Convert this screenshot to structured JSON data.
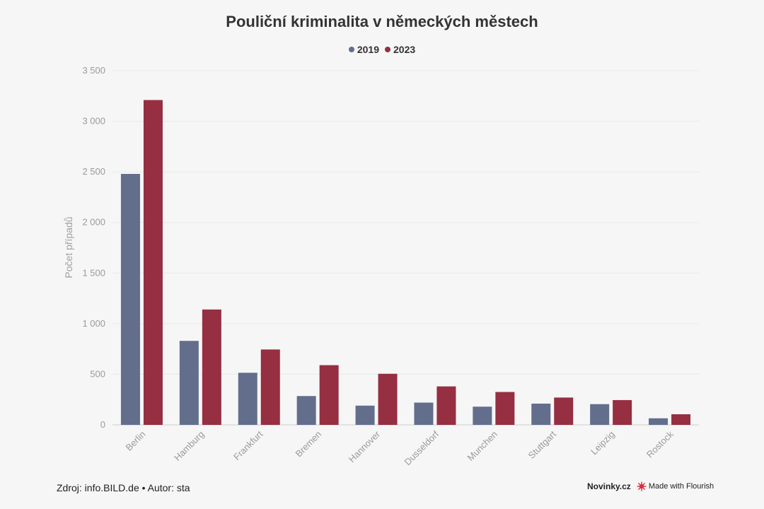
{
  "chart_data": {
    "type": "bar",
    "title": "Pouliční kriminalita v německých městech",
    "ylabel": "Počet případů",
    "xlabel": "",
    "categories": [
      "Berlin",
      "Hamburg",
      "Frankfurt",
      "Bremen",
      "Hannover",
      "Dusseldorf",
      "Munchen",
      "Stuttgart",
      "Leipzig",
      "Rostock"
    ],
    "series": [
      {
        "name": "2019",
        "color": "#636e8c",
        "values": [
          2480,
          830,
          515,
          285,
          190,
          220,
          180,
          210,
          205,
          65
        ]
      },
      {
        "name": "2023",
        "color": "#952f41",
        "values": [
          3210,
          1140,
          745,
          590,
          505,
          380,
          325,
          270,
          245,
          105
        ]
      }
    ],
    "ylim": [
      0,
      3500
    ],
    "yticks": [
      0,
      500,
      1000,
      1500,
      2000,
      2500,
      3000,
      3500
    ],
    "ytick_labels": [
      "0",
      "500",
      "1 000",
      "1 500",
      "2 000",
      "2 500",
      "3 000",
      "3 500"
    ],
    "grid": true,
    "legend_position": "top-center"
  },
  "footer": {
    "source": "Zdroj: info.BILD.de • Autor: sta",
    "brand": "Novinky.cz",
    "flourish": "Made with Flourish"
  }
}
